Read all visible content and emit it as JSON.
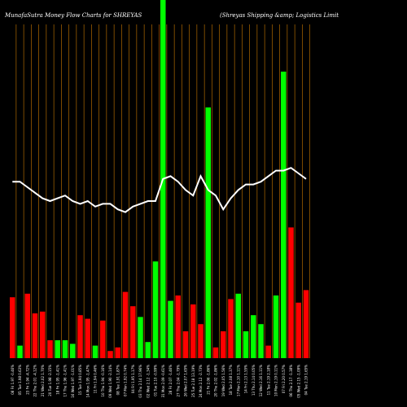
{
  "header": {
    "title": "MunafaSutra  Money Flow  Charts for SHREYAS",
    "subtitle": "(Shreyas Shipping &amp; Logistics Limit"
  },
  "chart_data": {
    "type": "bar",
    "title": "MunafaSutra  Money Flow  Charts for SHREYAS",
    "subtitle": "(Shreyas Shipping &amp; Logistics Limit",
    "xlabel": "",
    "ylabel": "",
    "grid": true,
    "categories": [
      "08 Fri 1.97 -0.46%",
      "05 Tue 1.98 0.63%",
      "23 Fri 1.94 -4.72%",
      "22 Thu 2.01 -4.12%",
      "21 Wed 2.02 1.70%",
      "20 Tue 1.98 -2.15%",
      "18 Fri 1.95 -1.41%",
      "17 Thu 1.96 -1.41%",
      "16 Wed 1.97 -1.01%",
      "15 Tue 1.94 0.85%",
      "14 Mon 1.95 -1.47%",
      "11 Fri 1.94 0.46%",
      "10 Thu 1.94 -0.16%",
      "09 Wed 1.90 -2.14%",
      "08 Tue 1.91 1.87%",
      "07 Mon 1.92 0.74%",
      "04 Fri 1.95 1.17%",
      "03 Thu 2.14 17.96%",
      "02 Wed 2.12 -1.34%",
      "01 Tue 2.10 -0.99%",
      "31 Mon 2.09 -0.61%",
      "28 Fri 2.07 -1.46%",
      "27 Thu 2.04 -1.79%",
      "26 Wed 2.07 1.65%",
      "25 Tue 2.18 13.19%",
      "24 Mon 2.12 -2.73%",
      "21 Fri 2.06 -1.86%",
      "20 Thu 2.02 -1.86%",
      "19 Wed 2.05 1.56%",
      "18 Tue 2.08 1.37%",
      "17 Mon 2.10 1.11%",
      "14 Fri 2.13 1.55%",
      "13 Thu 2.14 0.05%",
      "12 Wed 2.16 1.11%",
      "11 Tue 2.19 2.18%",
      "10 Mon 2.19 0.11%",
      "07 Fri 2.20 0.57%",
      "06 Thu 2.17 -1.38%",
      "05 Wed 2.15 -1.09%",
      "04 Tue 2.19 1.65%"
    ],
    "series": [
      {
        "role": "money_flow_bars",
        "values": [
          17.0,
          3.5,
          18.0,
          12.5,
          13.0,
          5.0,
          5.0,
          5.0,
          4.0,
          12.0,
          11.0,
          3.5,
          10.5,
          2.0,
          3.0,
          18.5,
          14.5,
          11.5,
          4.5,
          27.0,
          100.0,
          16.0,
          17.5,
          7.5,
          15.0,
          9.5,
          70.0,
          3.0,
          7.5,
          16.5,
          18.0,
          7.5,
          12.0,
          9.5,
          3.5,
          17.5,
          80.0,
          36.5,
          15.5,
          19.0
        ],
        "colors": [
          "red",
          "green",
          "red",
          "red",
          "red",
          "red",
          "green",
          "green",
          "green",
          "red",
          "red",
          "green",
          "red",
          "red",
          "red",
          "red",
          "red",
          "green",
          "green",
          "green",
          "green",
          "green",
          "red",
          "red",
          "red",
          "red",
          "green",
          "red",
          "red",
          "red",
          "green",
          "green",
          "green",
          "green",
          "red",
          "green",
          "green",
          "red",
          "red",
          "red"
        ]
      },
      {
        "role": "price_line",
        "values": [
          52,
          52,
          50,
          48,
          46,
          45,
          46,
          47,
          45,
          44,
          45,
          43,
          44,
          44,
          42,
          41,
          43,
          44,
          45,
          45,
          53,
          54,
          52,
          49,
          47,
          54,
          49,
          47,
          42,
          46,
          49,
          51,
          51,
          52,
          54,
          56,
          56,
          57,
          55,
          53
        ]
      }
    ],
    "color_map": {
      "red": "#ff0000",
      "green": "#00ff00",
      "line": "#ffffff",
      "grid": "#cc7a00"
    },
    "ylim": [
      0,
      100
    ]
  }
}
